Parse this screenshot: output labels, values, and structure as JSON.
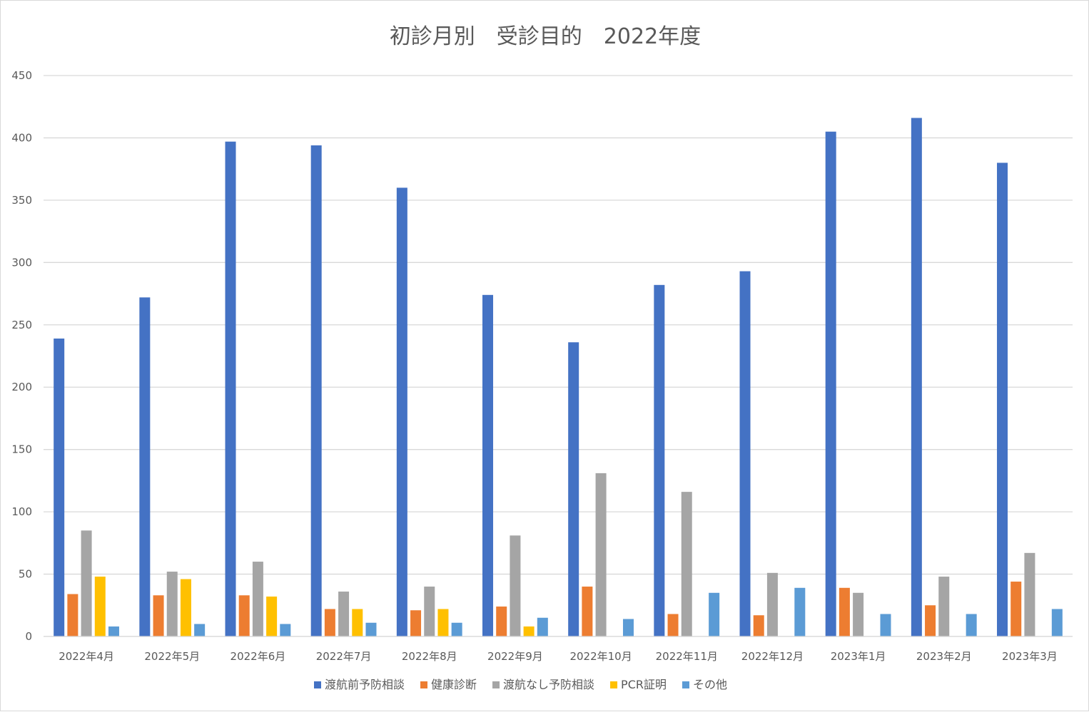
{
  "chart_data": {
    "type": "bar",
    "title": "初診月別　受診目的　2022年度",
    "categories": [
      "2022年4月",
      "2022年5月",
      "2022年6月",
      "2022年7月",
      "2022年8月",
      "2022年9月",
      "2022年10月",
      "2022年11月",
      "2022年12月",
      "2023年1月",
      "2023年2月",
      "2023年3月"
    ],
    "series": [
      {
        "name": "渡航前予防相談",
        "color": "#4472C4",
        "values": [
          239,
          272,
          397,
          394,
          360,
          274,
          236,
          282,
          293,
          405,
          416,
          380
        ]
      },
      {
        "name": "健康診断",
        "color": "#ED7D31",
        "values": [
          34,
          33,
          33,
          22,
          21,
          24,
          40,
          18,
          17,
          39,
          25,
          44
        ]
      },
      {
        "name": "渡航なし予防相談",
        "color": "#A5A5A5",
        "values": [
          85,
          52,
          60,
          36,
          40,
          81,
          131,
          116,
          51,
          35,
          48,
          67
        ]
      },
      {
        "name": "PCR証明",
        "color": "#FFC000",
        "values": [
          48,
          46,
          32,
          22,
          22,
          8,
          0,
          0,
          0,
          0,
          0,
          0
        ]
      },
      {
        "name": "その他",
        "color": "#5B9BD5",
        "values": [
          8,
          10,
          10,
          11,
          11,
          15,
          14,
          35,
          39,
          18,
          18,
          22
        ]
      }
    ],
    "ylim": [
      0,
      450
    ],
    "yticks": [
      0,
      50,
      100,
      150,
      200,
      250,
      300,
      350,
      400,
      450
    ],
    "grid": true,
    "legend_position": "bottom"
  }
}
